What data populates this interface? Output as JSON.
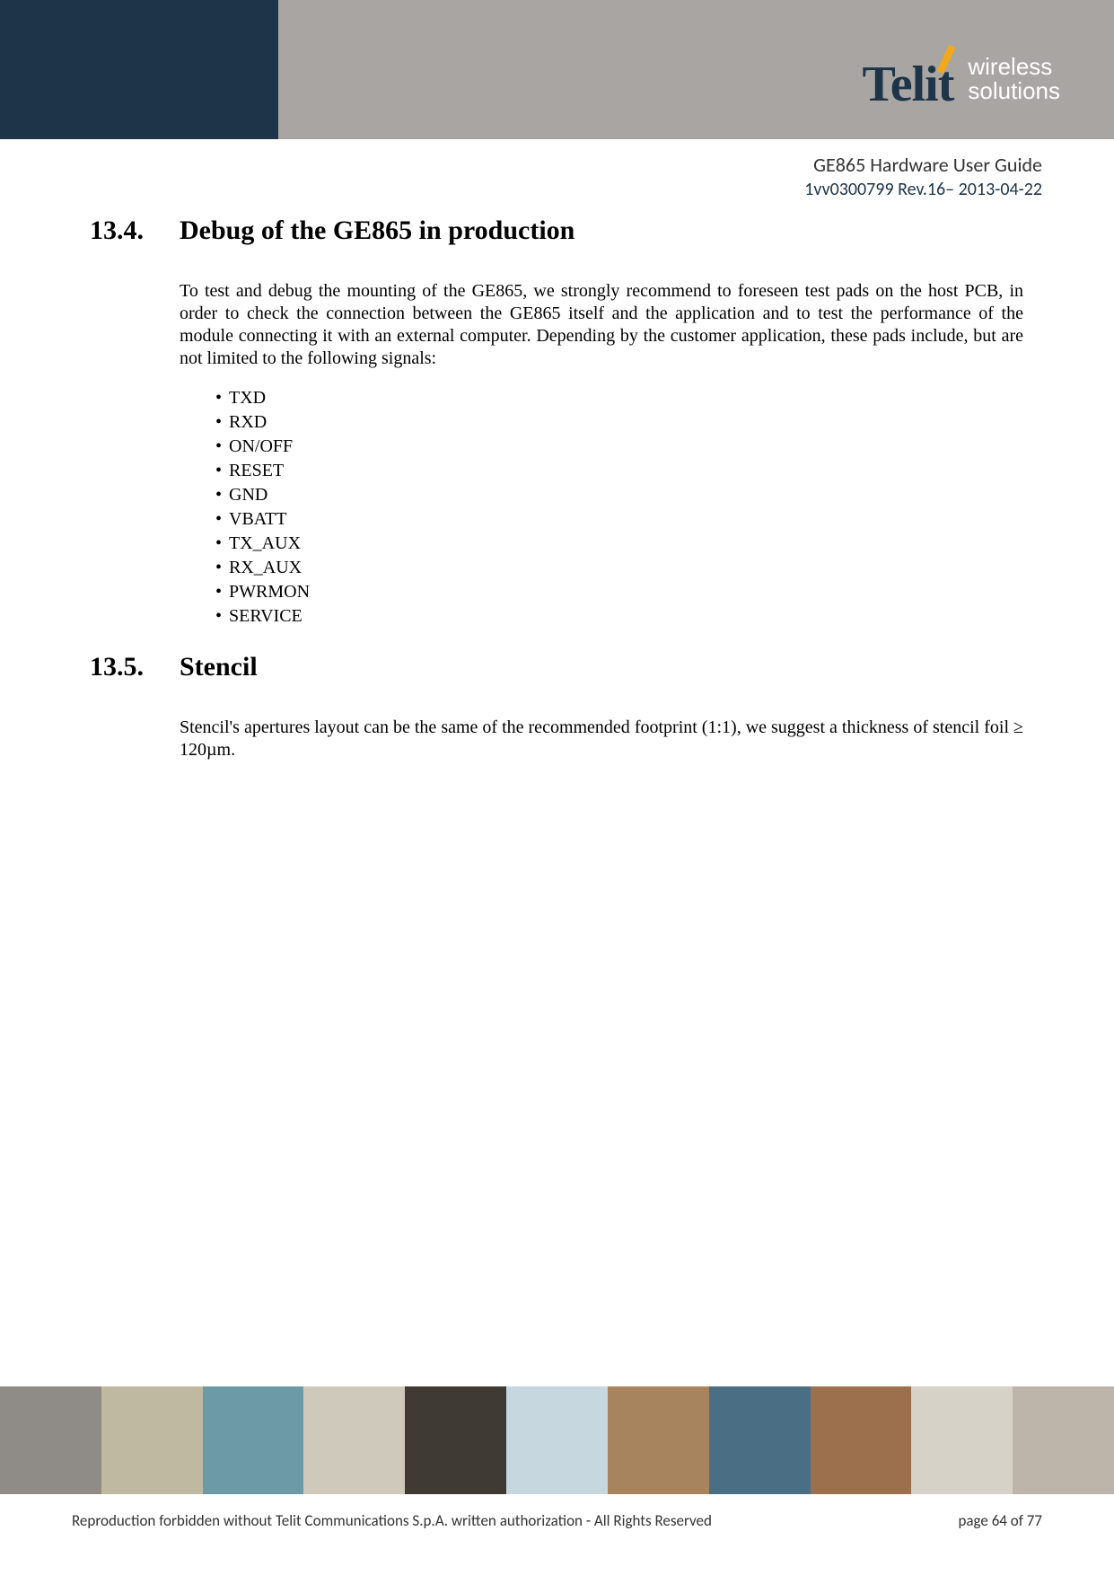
{
  "header": {
    "brand_name": "Telit",
    "brand_sub_line1": "wireless",
    "brand_sub_line2": "solutions",
    "colors": {
      "dark_band": "#1d3449",
      "gray_band": "#a9a5a2",
      "accent": "#f3a81a",
      "brand_text": "#1d3449",
      "sub_text": "#ffffff"
    }
  },
  "meta": {
    "doc_title": "GE865 Hardware User Guide",
    "doc_rev": "1vv0300799 Rev.16– 2013-04-22"
  },
  "sections": [
    {
      "number": "13.4.",
      "title": "Debug of the GE865 in production",
      "para": "To test and debug the mounting of the GE865, we strongly recommend to foreseen test pads on the host PCB, in order to check the connection between the GE865 itself and the application and to test the performance of the module connecting it with an external computer. Depending by the customer application, these pads include, but are not limited to the following signals:",
      "signals": [
        "TXD",
        "RXD",
        "ON/OFF",
        "RESET",
        "GND",
        "VBATT",
        "TX_AUX",
        "RX_AUX",
        "PWRMON",
        "SERVICE"
      ]
    },
    {
      "number": "13.5.",
      "title": "Stencil",
      "para": "Stencil's apertures layout can be the same of the recommended footprint (1:1), we suggest a thickness of stencil foil  ≥ 120µm."
    }
  ],
  "footer": {
    "strip_colors": [
      "#8f8c88",
      "#bfb9a2",
      "#6d9aa7",
      "#cfc9bc",
      "#3f3a34",
      "#c6d7e0",
      "#a7845d",
      "#4a6f85",
      "#9c6f4d",
      "#d7d2c7",
      "#bdb5a9"
    ],
    "legal": "Reproduction forbidden without Telit Communications S.p.A. written authorization - All Rights Reserved",
    "page": "page 64 of 77"
  }
}
